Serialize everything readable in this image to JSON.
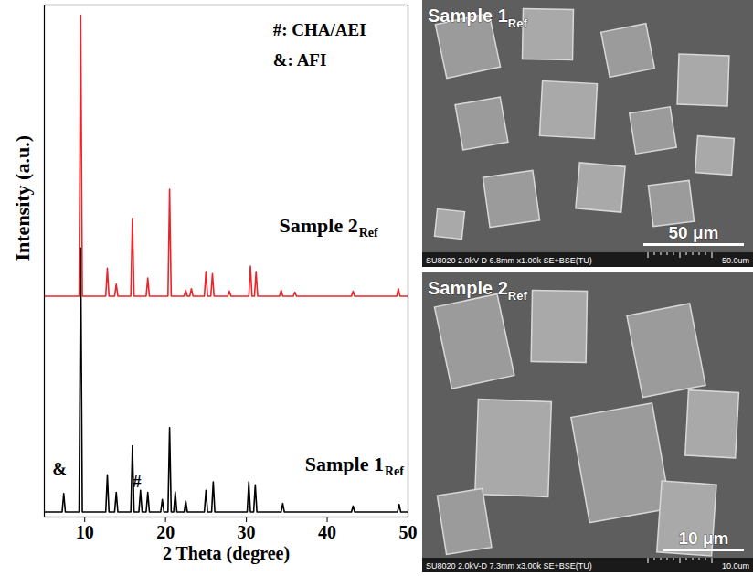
{
  "chart_data": {
    "type": "line",
    "xlabel": "2 Theta (degree)",
    "ylabel": "Intensity (a.u.)",
    "xlim": [
      5,
      50
    ],
    "xticks": [
      10,
      20,
      30,
      40,
      50
    ],
    "ylim": [
      0,
      102
    ],
    "tick_labels": "x",
    "series": [
      {
        "name": "Sample 1",
        "name_sub": "Ref",
        "color": "#000000",
        "label_x": 47.0,
        "label_y": 10.4,
        "x": [
          5,
          7.2,
          7.4,
          7.6,
          9.3,
          9.5,
          9.7,
          12.6,
          12.8,
          13.0,
          13.7,
          13.9,
          14.1,
          15.7,
          15.9,
          16.1,
          16.7,
          16.9,
          17.1,
          17.6,
          17.8,
          18.0,
          19.4,
          19.6,
          19.8,
          20.3,
          20.5,
          20.7,
          21.0,
          21.2,
          21.4,
          22.3,
          22.5,
          22.7,
          24.8,
          25.0,
          25.2,
          25.7,
          25.9,
          26.1,
          30.1,
          30.3,
          30.5,
          30.9,
          31.1,
          31.3,
          34.3,
          34.5,
          34.7,
          43.0,
          43.2,
          43.4,
          48.7,
          48.9,
          49.1,
          50
        ],
        "values": [
          1,
          1,
          4.7,
          1,
          1,
          53.6,
          1,
          1,
          8.4,
          1,
          1,
          4.9,
          1,
          1,
          14.2,
          1,
          1,
          5.3,
          1,
          1,
          4.9,
          1,
          1,
          3.5,
          1,
          1,
          17.8,
          1,
          1,
          5,
          1,
          1,
          3.2,
          1,
          1,
          5.3,
          1,
          1,
          7,
          1,
          1,
          7,
          1,
          1,
          6.4,
          1,
          1,
          2.7,
          1,
          1,
          2.2,
          1,
          1,
          2.5,
          1,
          1
        ]
      },
      {
        "name": "Sample 2",
        "name_sub": "Ref",
        "color": "#e8252b",
        "label_x": 43.8,
        "label_y": 58,
        "x": [
          5,
          9.3,
          9.5,
          9.7,
          12.6,
          12.8,
          13.0,
          13.7,
          13.9,
          14.1,
          15.7,
          15.9,
          16.1,
          17.6,
          17.8,
          18.0,
          20.3,
          20.5,
          20.7,
          22.3,
          22.5,
          22.7,
          23.0,
          23.2,
          23.4,
          24.8,
          25.0,
          25.2,
          25.6,
          25.8,
          26.0,
          27.7,
          27.9,
          28.1,
          30.3,
          30.5,
          30.7,
          31.0,
          31.2,
          31.4,
          34.1,
          34.3,
          34.5,
          35.8,
          36.0,
          36.2,
          43.0,
          43.2,
          43.4,
          48.6,
          48.8,
          49.0,
          50
        ],
        "values": [
          44,
          44,
          100,
          44,
          44,
          49.6,
          44,
          44,
          46.4,
          44,
          44,
          59.5,
          44,
          44,
          47.6,
          44,
          44,
          65.3,
          44,
          44,
          45.2,
          44,
          44,
          45.5,
          44,
          44,
          48.9,
          44,
          44,
          48.5,
          44,
          44,
          45,
          44,
          44,
          50,
          44,
          44,
          48.9,
          44,
          44,
          45.2,
          44,
          44,
          44.8,
          44,
          44,
          45,
          44,
          44,
          45.5,
          44,
          44
        ]
      }
    ],
    "annotations": [
      {
        "text": "#: CHA/AEI",
        "x": 33.3,
        "y": 97
      },
      {
        "text": "&: AFI",
        "x": 33.3,
        "y": 91
      },
      {
        "text": "&",
        "x": 6.0,
        "y": 9.5
      },
      {
        "text": "#",
        "x": 15.9,
        "y": 7
      }
    ]
  },
  "images": [
    {
      "label": "Sample 1",
      "label_sub": "Ref",
      "scale_bar": "50 μm",
      "info": "SU8020 2.0kV-D 6.8mm x1.00k SE+BSE(TU)",
      "scale_text": "50.0um"
    },
    {
      "label": "Sample 2",
      "label_sub": "Ref",
      "scale_bar": "10 μm",
      "info": "SU8020 2.0kV-D 7.3mm x3.00k SE+BSE(TU)",
      "scale_text": "10.0um"
    }
  ]
}
